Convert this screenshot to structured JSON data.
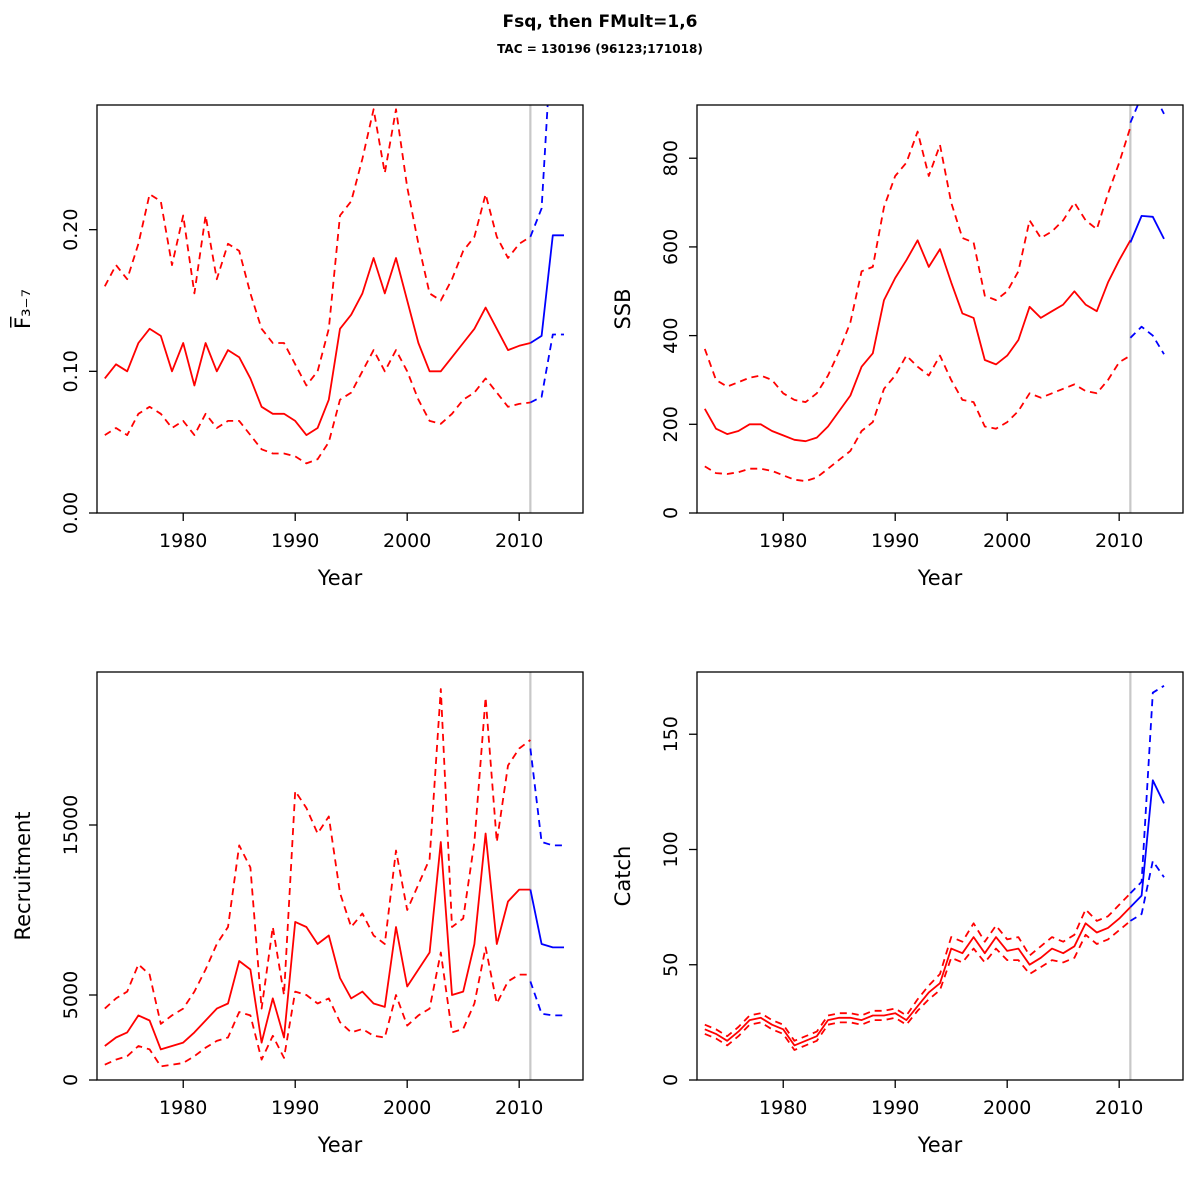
{
  "chart_data": {
    "type": "line",
    "title": "Fsq, then FMult=1,6",
    "subtitle": "TAC = 130196 (96123;171018)",
    "layout": "2x2 grid, R-style boxed panels, rotated y tick labels",
    "colors": {
      "historical": "#FF0000",
      "projection": "#0000FF",
      "vline": "#C8C8C8",
      "axis": "#000000"
    },
    "x": {
      "hist": [
        1973,
        1974,
        1975,
        1976,
        1977,
        1978,
        1979,
        1980,
        1981,
        1982,
        1983,
        1984,
        1985,
        1986,
        1987,
        1988,
        1989,
        1990,
        1991,
        1992,
        1993,
        1994,
        1995,
        1996,
        1997,
        1998,
        1999,
        2000,
        2001,
        2002,
        2003,
        2004,
        2005,
        2006,
        2007,
        2008,
        2009,
        2010,
        2011
      ],
      "proj": [
        2011,
        2012,
        2013,
        2014
      ]
    },
    "vline_year": 2011,
    "panels": [
      {
        "name": "fbar",
        "xlab": "Year",
        "ylab": "F̅₃₋₇",
        "xlim": [
          1972.3,
          2015.7
        ],
        "ylim": [
          0,
          0.288
        ],
        "xticks": {
          "values": [
            1980,
            1990,
            2000,
            2010
          ],
          "labels": [
            "1980",
            "1990",
            "2000",
            "2010"
          ]
        },
        "yticks": {
          "values": [
            0,
            0.1,
            0.2
          ],
          "labels": [
            "0.00",
            "0.10",
            "0.20"
          ]
        },
        "series": [
          {
            "name": "median-hist",
            "color": "#FF0000",
            "dash": false,
            "x": "hist",
            "values": [
              0.095,
              0.105,
              0.1,
              0.12,
              0.13,
              0.125,
              0.1,
              0.12,
              0.09,
              0.12,
              0.1,
              0.115,
              0.11,
              0.095,
              0.075,
              0.07,
              0.07,
              0.065,
              0.055,
              0.06,
              0.08,
              0.13,
              0.14,
              0.155,
              0.18,
              0.155,
              0.18,
              0.15,
              0.12,
              0.1,
              0.1,
              0.11,
              0.12,
              0.13,
              0.145,
              0.13,
              0.115,
              0.118,
              0.12
            ]
          },
          {
            "name": "upper-hist",
            "color": "#FF0000",
            "dash": true,
            "x": "hist",
            "values": [
              0.16,
              0.175,
              0.165,
              0.19,
              0.225,
              0.22,
              0.175,
              0.21,
              0.155,
              0.21,
              0.165,
              0.19,
              0.185,
              0.155,
              0.13,
              0.12,
              0.12,
              0.105,
              0.09,
              0.1,
              0.13,
              0.21,
              0.22,
              0.25,
              0.285,
              0.24,
              0.285,
              0.23,
              0.19,
              0.155,
              0.15,
              0.165,
              0.185,
              0.195,
              0.225,
              0.195,
              0.18,
              0.19,
              0.195
            ]
          },
          {
            "name": "lower-hist",
            "color": "#FF0000",
            "dash": true,
            "x": "hist",
            "values": [
              0.055,
              0.06,
              0.055,
              0.07,
              0.075,
              0.07,
              0.06,
              0.065,
              0.055,
              0.07,
              0.06,
              0.065,
              0.065,
              0.055,
              0.045,
              0.042,
              0.042,
              0.04,
              0.035,
              0.038,
              0.05,
              0.08,
              0.085,
              0.1,
              0.115,
              0.1,
              0.115,
              0.1,
              0.08,
              0.065,
              0.063,
              0.07,
              0.08,
              0.085,
              0.095,
              0.085,
              0.075,
              0.077,
              0.078
            ]
          },
          {
            "name": "median-proj",
            "color": "#0000FF",
            "dash": false,
            "x": "proj",
            "values": [
              0.12,
              0.125,
              0.196,
              0.196
            ]
          },
          {
            "name": "upper-proj",
            "color": "#0000FF",
            "dash": true,
            "x": "proj",
            "values": [
              0.195,
              0.215,
              0.35,
              0.36
            ]
          },
          {
            "name": "lower-proj",
            "color": "#0000FF",
            "dash": true,
            "x": "proj",
            "values": [
              0.078,
              0.082,
              0.126,
              0.126
            ]
          }
        ]
      },
      {
        "name": "ssb",
        "xlab": "Year",
        "ylab": "SSB",
        "xlim": [
          1972.3,
          2015.7
        ],
        "ylim": [
          0,
          920
        ],
        "xticks": {
          "values": [
            1980,
            1990,
            2000,
            2010
          ],
          "labels": [
            "1980",
            "1990",
            "2000",
            "2010"
          ]
        },
        "yticks": {
          "values": [
            0,
            200,
            400,
            600,
            800
          ],
          "labels": [
            "0",
            "200",
            "400",
            "600",
            "800"
          ]
        },
        "series": [
          {
            "name": "median-hist",
            "color": "#FF0000",
            "dash": false,
            "x": "hist",
            "values": [
              235,
              190,
              178,
              185,
              200,
              200,
              185,
              175,
              165,
              162,
              170,
              195,
              230,
              265,
              330,
              360,
              480,
              530,
              570,
              615,
              555,
              595,
              520,
              450,
              440,
              345,
              335,
              355,
              390,
              465,
              440,
              455,
              470,
              500,
              470,
              455,
              520,
              570,
              615
            ]
          },
          {
            "name": "upper-hist",
            "color": "#FF0000",
            "dash": true,
            "x": "hist",
            "values": [
              370,
              300,
              285,
              295,
              305,
              310,
              300,
              270,
              255,
              250,
              270,
              310,
              365,
              430,
              545,
              555,
              690,
              760,
              790,
              860,
              760,
              830,
              700,
              620,
              610,
              490,
              480,
              500,
              545,
              660,
              620,
              635,
              660,
              700,
              660,
              640,
              720,
              790,
              870
            ]
          },
          {
            "name": "lower-hist",
            "color": "#FF0000",
            "dash": true,
            "x": "hist",
            "values": [
              105,
              90,
              88,
              92,
              100,
              100,
              95,
              85,
              75,
              72,
              80,
              100,
              120,
              140,
              185,
              205,
              280,
              310,
              355,
              330,
              310,
              355,
              300,
              255,
              250,
              195,
              190,
              205,
              230,
              270,
              260,
              270,
              280,
              290,
              275,
              270,
              300,
              340,
              355
            ]
          },
          {
            "name": "median-proj",
            "color": "#0000FF",
            "dash": false,
            "x": "proj",
            "values": [
              610,
              670,
              668,
              618
            ]
          },
          {
            "name": "upper-proj",
            "color": "#0000FF",
            "dash": true,
            "x": "proj",
            "values": [
              880,
              940,
              950,
              900
            ]
          },
          {
            "name": "lower-proj",
            "color": "#0000FF",
            "dash": true,
            "x": "proj",
            "values": [
              395,
              420,
              400,
              358
            ]
          }
        ]
      },
      {
        "name": "recruitment",
        "xlab": "Year",
        "ylab": "Recruitment",
        "xlim": [
          1972.3,
          2015.7
        ],
        "ylim": [
          0,
          24000
        ],
        "xticks": {
          "values": [
            1980,
            1990,
            2000,
            2010
          ],
          "labels": [
            "1980",
            "1990",
            "2000",
            "2010"
          ]
        },
        "yticks": {
          "values": [
            0,
            5000,
            15000
          ],
          "labels": [
            "0",
            "5000",
            "15000"
          ]
        },
        "series": [
          {
            "name": "median-hist",
            "color": "#FF0000",
            "dash": false,
            "x": "hist",
            "values": [
              2000,
              2500,
              2800,
              3800,
              3500,
              1800,
              2000,
              2200,
              2800,
              3500,
              4200,
              4500,
              7000,
              6500,
              2200,
              4800,
              2500,
              9300,
              9000,
              8000,
              8500,
              6000,
              4800,
              5200,
              4500,
              4300,
              9000,
              5500,
              6500,
              7500,
              14000,
              5000,
              5200,
              8000,
              14500,
              8000,
              10500,
              11200,
              11200
            ]
          },
          {
            "name": "upper-hist",
            "color": "#FF0000",
            "dash": true,
            "x": "hist",
            "values": [
              4200,
              4800,
              5200,
              6800,
              6200,
              3300,
              3800,
              4200,
              5200,
              6500,
              8000,
              9000,
              13800,
              12500,
              4200,
              9000,
              5000,
              17000,
              16000,
              14500,
              15500,
              11000,
              9000,
              9800,
              8500,
              8000,
              13500,
              10000,
              11500,
              13000,
              23000,
              9000,
              9500,
              14000,
              22500,
              14000,
              18500,
              19500,
              20000
            ]
          },
          {
            "name": "lower-hist",
            "color": "#FF0000",
            "dash": true,
            "x": "hist",
            "values": [
              900,
              1200,
              1400,
              2000,
              1800,
              800,
              900,
              1000,
              1400,
              1900,
              2300,
              2500,
              4000,
              3800,
              1200,
              2600,
              1300,
              5200,
              5000,
              4500,
              4800,
              3400,
              2800,
              3000,
              2600,
              2500,
              5000,
              3200,
              3800,
              4200,
              7500,
              2800,
              3000,
              4500,
              7800,
              4500,
              5800,
              6200,
              6200
            ]
          },
          {
            "name": "median-proj",
            "color": "#0000FF",
            "dash": false,
            "x": "proj",
            "values": [
              11200,
              8000,
              7800,
              7800
            ]
          },
          {
            "name": "upper-proj",
            "color": "#0000FF",
            "dash": true,
            "x": "proj",
            "values": [
              19500,
              14000,
              13800,
              13800
            ]
          },
          {
            "name": "lower-proj",
            "color": "#0000FF",
            "dash": true,
            "x": "proj",
            "values": [
              5800,
              3900,
              3800,
              3800
            ]
          }
        ]
      },
      {
        "name": "catch",
        "xlab": "Year",
        "ylab": "Catch",
        "xlim": [
          1972.3,
          2015.7
        ],
        "ylim": [
          0,
          177
        ],
        "xticks": {
          "values": [
            1980,
            1990,
            2000,
            2010
          ],
          "labels": [
            "1980",
            "1990",
            "2000",
            "2010"
          ]
        },
        "yticks": {
          "values": [
            0,
            50,
            100,
            150
          ],
          "labels": [
            "0",
            "50",
            "100",
            "150"
          ]
        },
        "series": [
          {
            "name": "median-hist",
            "color": "#FF0000",
            "dash": false,
            "x": "hist",
            "values": [
              22,
              20,
              17,
              21,
              26,
              27,
              24,
              22,
              15,
              17,
              19,
              26,
              27,
              27,
              26,
              28,
              28,
              29,
              26,
              32,
              38,
              42,
              57,
              55,
              62,
              55,
              62,
              56,
              57,
              50,
              53,
              57,
              55,
              58,
              68,
              64,
              66,
              70,
              75
            ]
          },
          {
            "name": "upper-hist",
            "color": "#FF0000",
            "dash": true,
            "x": "hist",
            "values": [
              24,
              22,
              19,
              23,
              28,
              29,
              26,
              24,
              17,
              19,
              21,
              28,
              29,
              29,
              28,
              30,
              30,
              31,
              28,
              35,
              41,
              46,
              62,
              60,
              68,
              60,
              67,
              61,
              62,
              54,
              58,
              62,
              60,
              63,
              74,
              69,
              71,
              76,
              81
            ]
          },
          {
            "name": "lower-hist",
            "color": "#FF0000",
            "dash": true,
            "x": "hist",
            "values": [
              20,
              18,
              15,
              19,
              24,
              25,
              22,
              20,
              13,
              15,
              17,
              24,
              25,
              25,
              24,
              26,
              26,
              27,
              24,
              30,
              35,
              39,
              53,
              51,
              57,
              51,
              57,
              52,
              52,
              46,
              49,
              52,
              51,
              53,
              63,
              59,
              61,
              65,
              69
            ]
          },
          {
            "name": "median-proj",
            "color": "#0000FF",
            "dash": false,
            "x": "proj",
            "values": [
              75,
              80,
              130,
              120
            ]
          },
          {
            "name": "upper-proj",
            "color": "#0000FF",
            "dash": true,
            "x": "proj",
            "values": [
              81,
              86,
              168,
              171
            ]
          },
          {
            "name": "lower-proj",
            "color": "#0000FF",
            "dash": true,
            "x": "proj",
            "values": [
              69,
              72,
              95,
              88
            ]
          }
        ]
      }
    ]
  }
}
